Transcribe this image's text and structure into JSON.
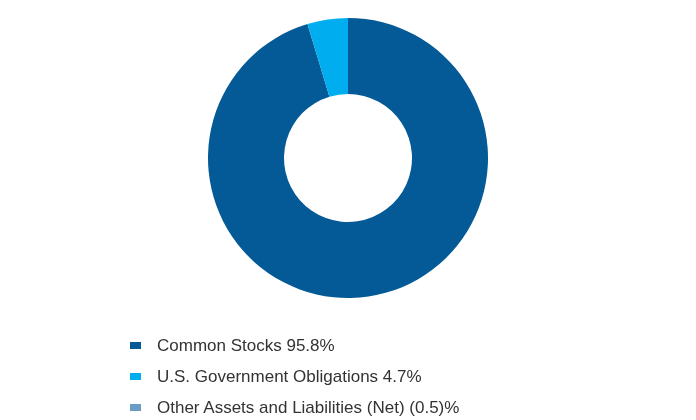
{
  "chart_data": {
    "type": "donut",
    "categories": [
      "Common Stocks",
      "U.S. Government Obligations",
      "Other Assets and Liabilities (Net)"
    ],
    "values": [
      95.8,
      4.7,
      -0.5
    ],
    "value_labels": [
      "95.8%",
      "4.7%",
      "(0.5)%"
    ],
    "colors": [
      "#035a96",
      "#00aeef",
      "#6a9cc6"
    ],
    "legend": "bottom"
  }
}
